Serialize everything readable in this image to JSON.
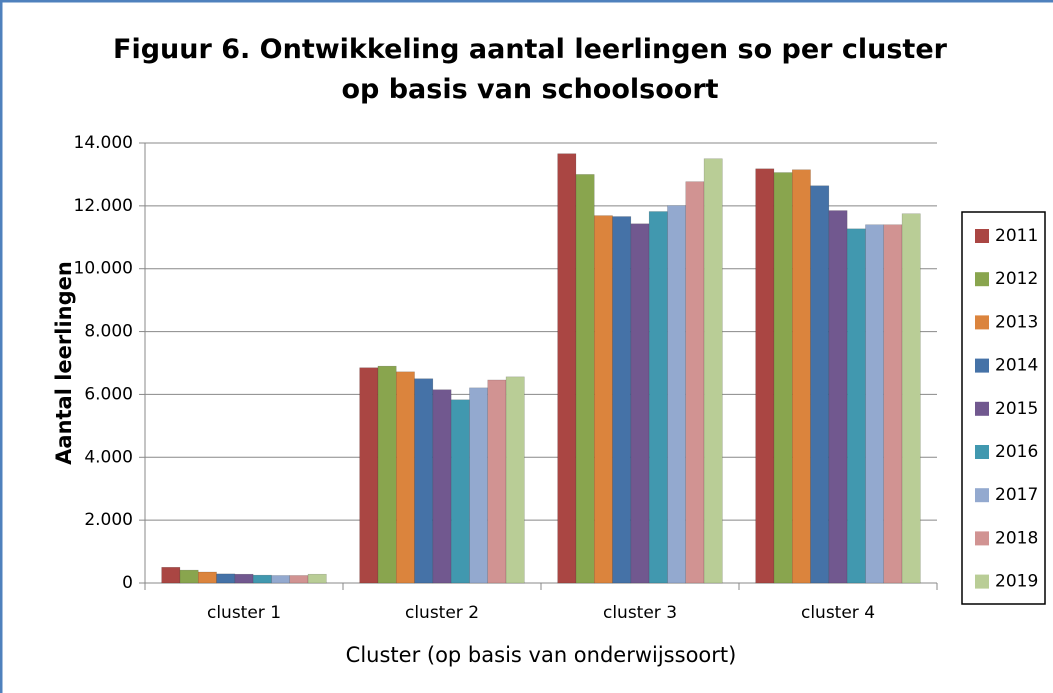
{
  "chart_data": {
    "type": "bar",
    "title": "Figuur 6. Ontwikkeling aantal leerlingen so per cluster op basis van schoolsoort",
    "xlabel": "Cluster (op basis van onderwijssoort)",
    "ylabel": "Aantal leerlingen",
    "categories": [
      "cluster 1",
      "cluster 2",
      "cluster 3",
      "cluster 4"
    ],
    "series": [
      {
        "name": "2011",
        "color": "#aa4643",
        "values": [
          500,
          6850,
          13660,
          13180
        ]
      },
      {
        "name": "2012",
        "color": "#89a54e",
        "values": [
          410,
          6900,
          13000,
          13060
        ]
      },
      {
        "name": "2013",
        "color": "#db843d",
        "values": [
          350,
          6720,
          11690,
          13150
        ]
      },
      {
        "name": "2014",
        "color": "#4572a7",
        "values": [
          290,
          6500,
          11660,
          12640
        ]
      },
      {
        "name": "2015",
        "color": "#71588f",
        "values": [
          280,
          6150,
          11430,
          11850
        ]
      },
      {
        "name": "2016",
        "color": "#4198af",
        "values": [
          250,
          5830,
          11820,
          11270
        ]
      },
      {
        "name": "2017",
        "color": "#93a9cf",
        "values": [
          240,
          6210,
          12010,
          11400
        ]
      },
      {
        "name": "2018",
        "color": "#d19392",
        "values": [
          240,
          6460,
          12770,
          11400
        ]
      },
      {
        "name": "2019",
        "color": "#b9cd96",
        "values": [
          280,
          6560,
          13500,
          11750
        ]
      }
    ],
    "ylim": [
      0,
      14000
    ],
    "yticks": [
      0,
      {
        "value": 2000,
        "label": "2.000"
      },
      {
        "value": 4000,
        "label": "4.000"
      },
      {
        "value": 6000,
        "label": "6.000"
      },
      {
        "value": 8000,
        "label": "8.000"
      },
      {
        "value": 10000,
        "label": "10.000"
      },
      {
        "value": 12000,
        "label": "12.000"
      },
      {
        "value": 14000,
        "label": "14.000"
      }
    ],
    "grid": true,
    "legend": "right"
  }
}
